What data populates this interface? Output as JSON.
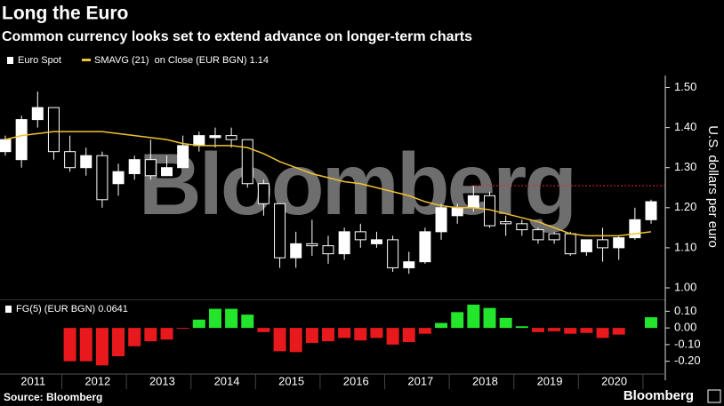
{
  "chart_data": {
    "type": "candlestick",
    "title": "Long the Euro",
    "subtitle": "Common currency looks set to extend advance on longer-term charts",
    "y_axis_label": "U.S. dollars per euro",
    "watermark": "Bloomberg",
    "source": "Source: Bloomberg",
    "logo": "Bloomberg",
    "x_labels": [
      "2011",
      "2012",
      "2013",
      "2014",
      "2015",
      "2016",
      "2017",
      "2018",
      "2019",
      "2020"
    ],
    "ylim": [
      0.98,
      1.53
    ],
    "yticks": [
      {
        "value": 1.0,
        "label": "1.00"
      },
      {
        "value": 1.1,
        "label": "1.10"
      },
      {
        "value": 1.2,
        "label": "1.20"
      },
      {
        "value": 1.3,
        "label": "1.30"
      },
      {
        "value": 1.4,
        "label": "1.40"
      },
      {
        "value": 1.5,
        "label": "1.50"
      }
    ],
    "reference_line": {
      "value": 1.255,
      "color": "#e0282c"
    },
    "candles": {
      "name": "Euro Spot",
      "up_color": "#ffffff",
      "down_color": "#000000",
      "open": [
        1.34,
        1.32,
        1.42,
        1.45,
        1.34,
        1.3,
        1.33,
        1.26,
        1.285,
        1.32,
        1.28,
        1.3,
        1.355,
        1.375,
        1.38,
        1.37,
        1.26,
        1.21,
        1.075,
        1.11,
        1.105,
        1.085,
        1.14,
        1.11,
        1.12,
        1.05,
        1.065,
        1.14,
        1.18,
        1.2,
        1.23,
        1.165,
        1.16,
        1.145,
        1.135,
        1.135,
        1.09,
        1.12,
        1.1,
        1.125,
        1.17
      ],
      "high": [
        1.38,
        1.43,
        1.49,
        1.45,
        1.38,
        1.35,
        1.34,
        1.31,
        1.33,
        1.37,
        1.33,
        1.38,
        1.39,
        1.4,
        1.4,
        1.37,
        1.27,
        1.21,
        1.14,
        1.17,
        1.13,
        1.15,
        1.16,
        1.14,
        1.13,
        1.09,
        1.15,
        1.21,
        1.21,
        1.255,
        1.24,
        1.18,
        1.17,
        1.15,
        1.14,
        1.14,
        1.12,
        1.15,
        1.13,
        1.2,
        1.22
      ],
      "low": [
        1.33,
        1.3,
        1.4,
        1.32,
        1.29,
        1.28,
        1.2,
        1.23,
        1.27,
        1.27,
        1.28,
        1.3,
        1.34,
        1.35,
        1.35,
        1.25,
        1.18,
        1.05,
        1.05,
        1.08,
        1.06,
        1.07,
        1.1,
        1.1,
        1.04,
        1.035,
        1.06,
        1.12,
        1.16,
        1.19,
        1.15,
        1.13,
        1.13,
        1.11,
        1.11,
        1.08,
        1.08,
        1.065,
        1.07,
        1.12,
        1.16
      ],
      "close": [
        1.37,
        1.42,
        1.45,
        1.34,
        1.3,
        1.33,
        1.22,
        1.29,
        1.32,
        1.28,
        1.3,
        1.355,
        1.38,
        1.38,
        1.37,
        1.26,
        1.21,
        1.075,
        1.11,
        1.105,
        1.085,
        1.14,
        1.12,
        1.12,
        1.05,
        1.065,
        1.14,
        1.2,
        1.2,
        1.23,
        1.155,
        1.16,
        1.145,
        1.12,
        1.12,
        1.085,
        1.12,
        1.1,
        1.125,
        1.17,
        1.215
      ]
    },
    "moving_average": {
      "name": "SMAVG (21)  on Close (EUR BGN) 1.14",
      "color": "#f2c230",
      "values": [
        1.37,
        1.38,
        1.385,
        1.39,
        1.39,
        1.39,
        1.39,
        1.385,
        1.38,
        1.375,
        1.37,
        1.36,
        1.355,
        1.355,
        1.355,
        1.35,
        1.335,
        1.315,
        1.3,
        1.285,
        1.275,
        1.265,
        1.26,
        1.25,
        1.24,
        1.23,
        1.215,
        1.205,
        1.2,
        1.2,
        1.195,
        1.185,
        1.175,
        1.165,
        1.15,
        1.135,
        1.13,
        1.13,
        1.13,
        1.135,
        1.14
      ]
    },
    "indicator": {
      "name": "FG(5) (EUR BGN) 0.0641",
      "positive_color": "#22e52c",
      "negative_color": "#e8191c",
      "ylim": [
        -0.25,
        0.15
      ],
      "yticks": [
        {
          "value": 0.1,
          "label": "0.10"
        },
        {
          "value": 0.0,
          "label": "0.00"
        },
        {
          "value": -0.1,
          "label": "-0.10"
        },
        {
          "value": -0.2,
          "label": "-0.20"
        }
      ],
      "values": [
        null,
        null,
        null,
        null,
        -0.2,
        -0.2,
        -0.225,
        -0.17,
        -0.11,
        -0.08,
        -0.07,
        -0.005,
        0.05,
        0.115,
        0.115,
        0.08,
        -0.025,
        -0.14,
        -0.145,
        -0.09,
        -0.08,
        -0.06,
        -0.075,
        -0.06,
        -0.1,
        -0.085,
        -0.035,
        0.03,
        0.095,
        0.14,
        0.12,
        0.06,
        0.01,
        -0.025,
        -0.02,
        -0.035,
        -0.03,
        -0.06,
        -0.04,
        null,
        0.0641
      ]
    }
  }
}
